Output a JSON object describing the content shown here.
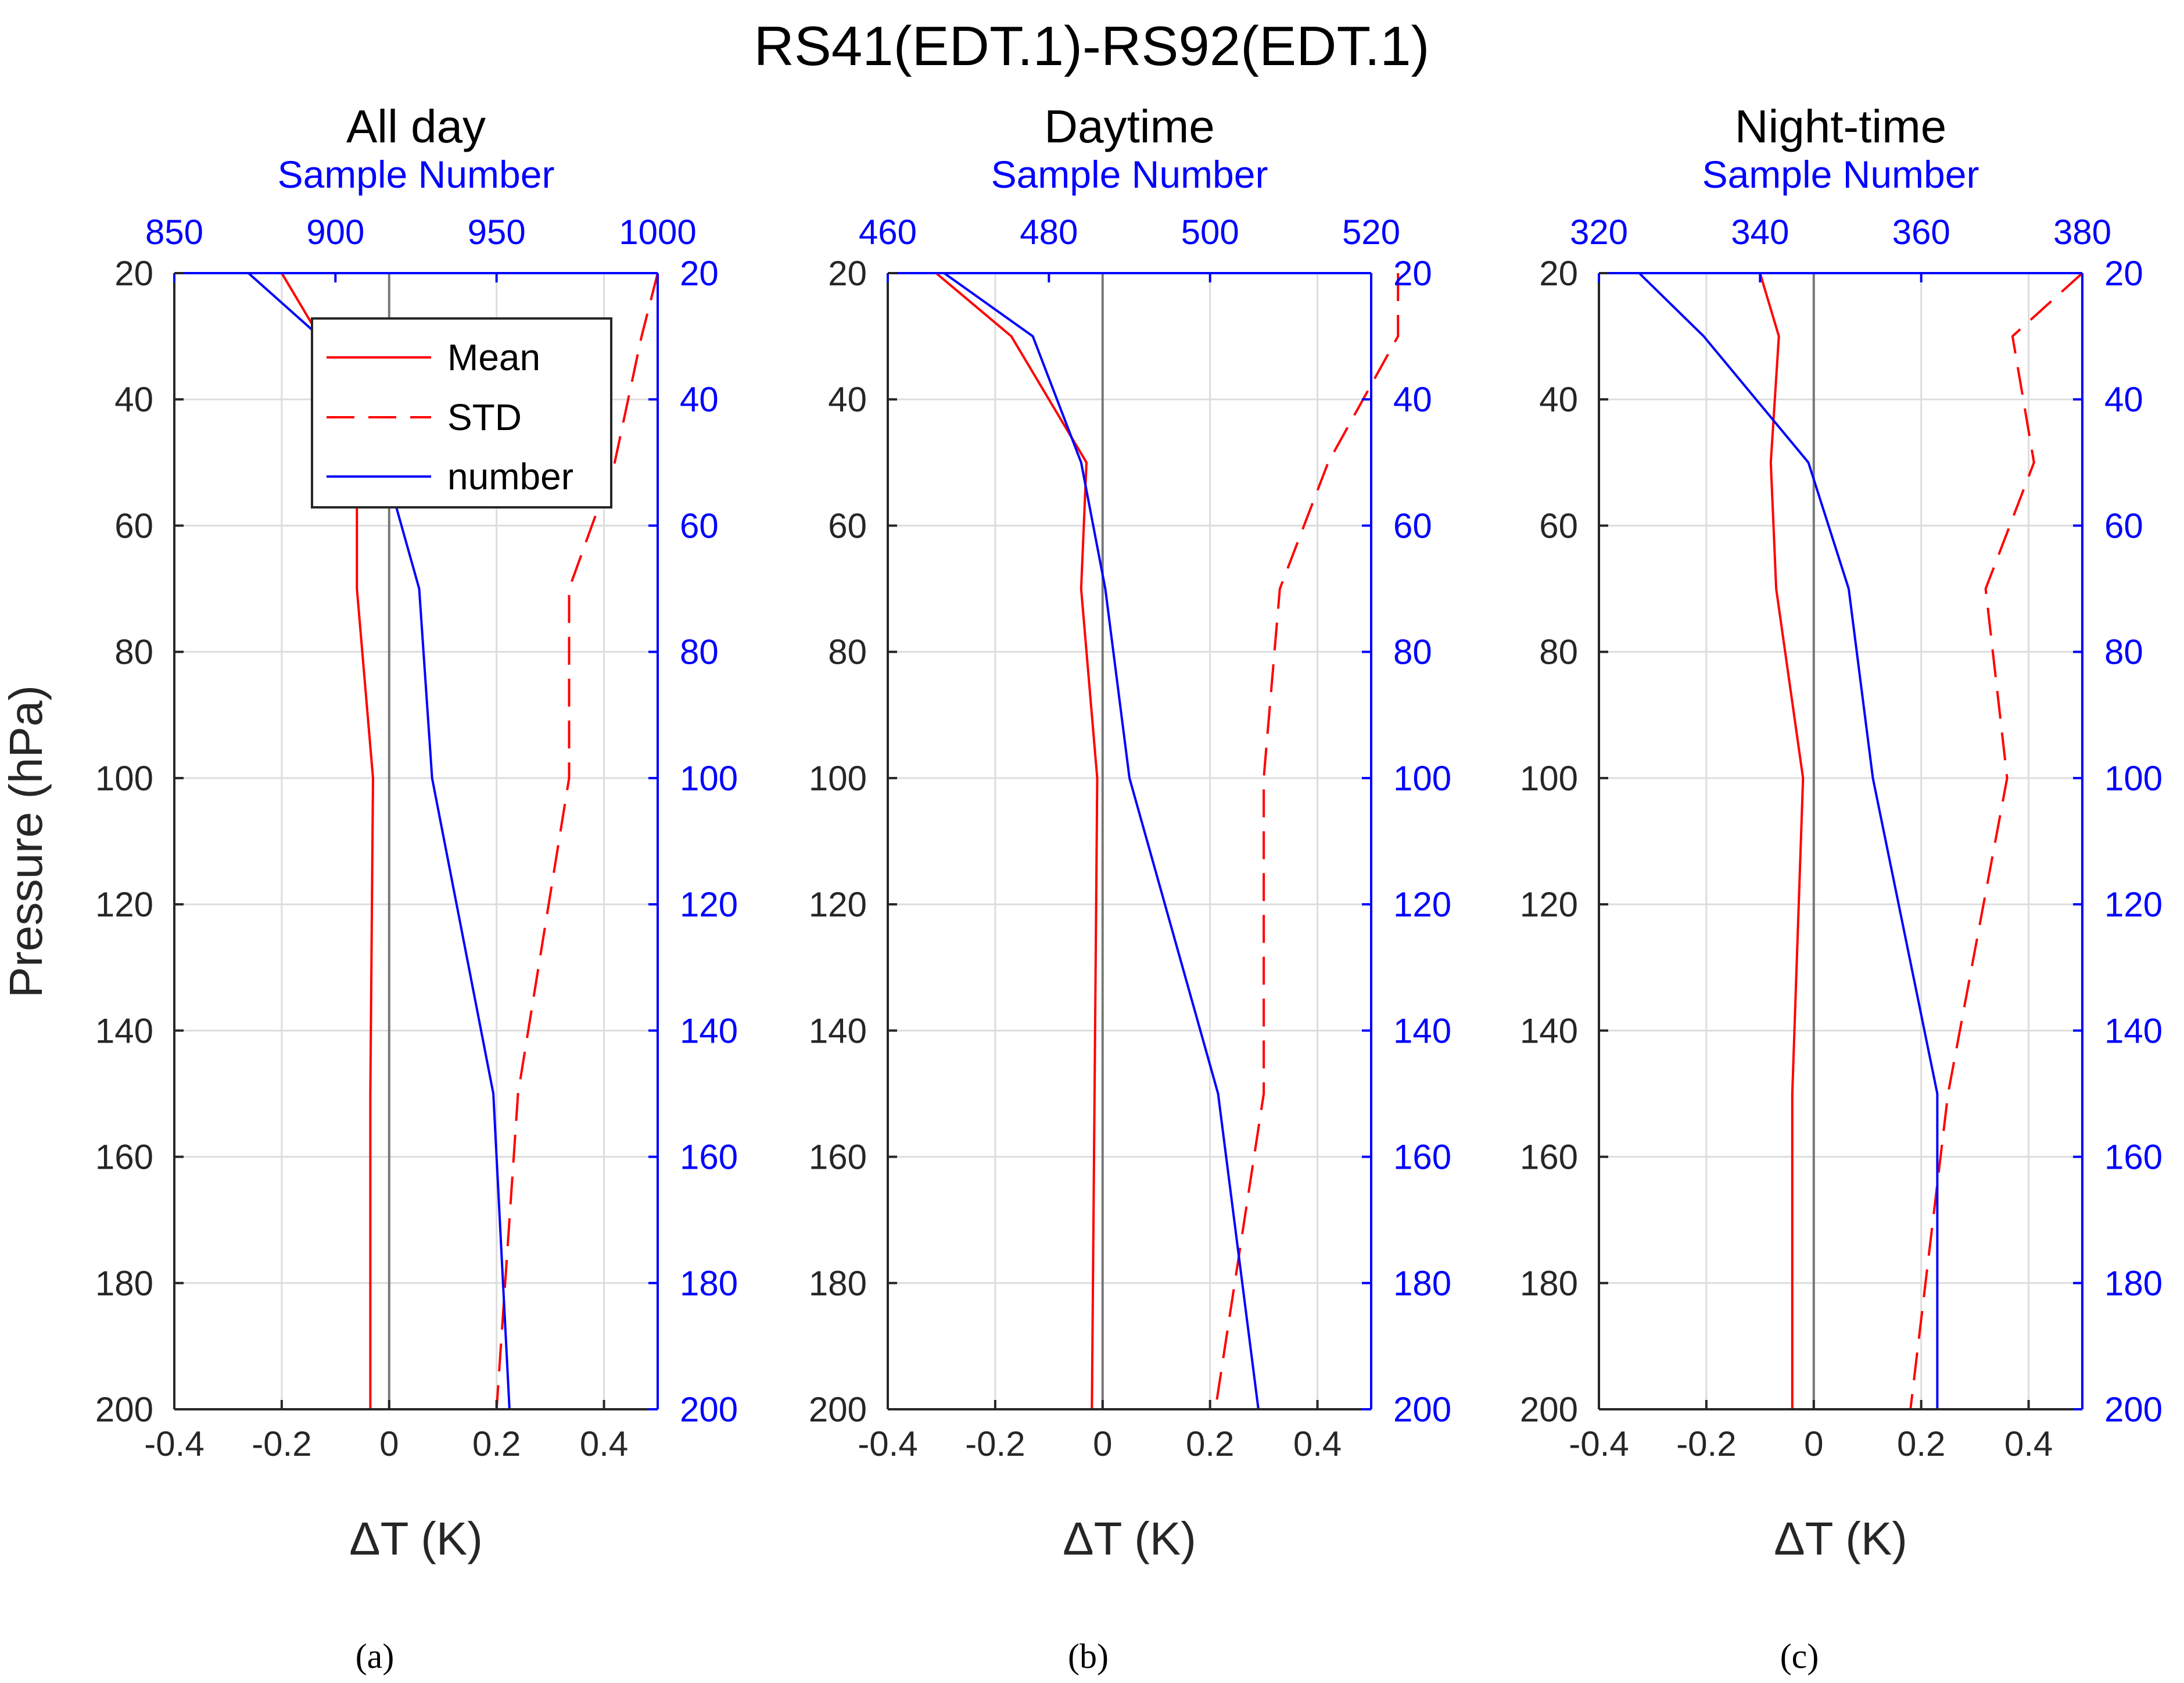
{
  "title": "RS41(EDT.1)-RS92(EDT.1)",
  "colors": {
    "mean": "#ff0000",
    "std": "#ff0000",
    "number": "#0000ff",
    "zero_line": "#777777",
    "grid": "#dddddd",
    "axis": "#262626",
    "blue_axis": "#0000ff"
  },
  "chart_data": [
    {
      "type": "line",
      "panel_title": "All day",
      "caption": "(a)",
      "xlabel": "ΔT (K)",
      "ylabel": "Pressure (hPa)",
      "top_xlabel": "Sample Number",
      "xlim": [
        -0.4,
        0.5
      ],
      "top_xlim": [
        850,
        1000
      ],
      "ylim": [
        20,
        200
      ],
      "x_ticks": [
        -0.4,
        -0.2,
        0,
        0.2,
        0.4
      ],
      "x_tick_labels": [
        "-0.4",
        "-0.2",
        "0",
        "0.2",
        "0.4"
      ],
      "top_ticks": [
        850,
        900,
        950,
        1000
      ],
      "top_tick_labels": [
        "850",
        "900",
        "950",
        "1000"
      ],
      "y_ticks": [
        20,
        40,
        60,
        80,
        100,
        120,
        140,
        160,
        180,
        200
      ],
      "y_tick_labels": [
        "20",
        "40",
        "60",
        "80",
        "100",
        "120",
        "140",
        "160",
        "180",
        "200"
      ],
      "right_tick_labels": [
        "20",
        "40",
        "60",
        "80",
        "100",
        "120",
        "140",
        "160",
        "180",
        "200"
      ],
      "legend": {
        "entries": [
          "Mean",
          "STD",
          "number"
        ],
        "position": "top-center"
      },
      "pressure": [
        20,
        30,
        50,
        70,
        100,
        150,
        200
      ],
      "series": [
        {
          "name": "Mean",
          "axis": "bottom",
          "style": "solid",
          "values": [
            -0.2,
            -0.13,
            -0.06,
            -0.06,
            -0.03,
            -0.035,
            -0.035
          ]
        },
        {
          "name": "STD",
          "axis": "bottom",
          "style": "dashed",
          "values": [
            0.5,
            0.47,
            0.42,
            0.335,
            0.335,
            0.24,
            0.2
          ]
        },
        {
          "name": "number",
          "axis": "top",
          "style": "solid",
          "values": [
            873,
            895,
            915,
            926,
            930,
            949,
            954
          ]
        }
      ]
    },
    {
      "type": "line",
      "panel_title": "Daytime",
      "caption": "(b)",
      "xlabel": "ΔT (K)",
      "top_xlabel": "Sample Number",
      "xlim": [
        -0.4,
        0.5
      ],
      "top_xlim": [
        460,
        520
      ],
      "ylim": [
        20,
        200
      ],
      "x_ticks": [
        -0.4,
        -0.2,
        0,
        0.2,
        0.4
      ],
      "x_tick_labels": [
        "-0.4",
        "-0.2",
        "0",
        "0.2",
        "0.4"
      ],
      "top_ticks": [
        460,
        480,
        500,
        520
      ],
      "top_tick_labels": [
        "460",
        "480",
        "500",
        "520"
      ],
      "y_ticks": [
        20,
        40,
        60,
        80,
        100,
        120,
        140,
        160,
        180,
        200
      ],
      "y_tick_labels": [
        "20",
        "40",
        "60",
        "80",
        "100",
        "120",
        "140",
        "160",
        "180",
        "200"
      ],
      "right_tick_labels": [
        "20",
        "40",
        "60",
        "80",
        "100",
        "120",
        "140",
        "160",
        "180",
        "200"
      ],
      "pressure": [
        20,
        30,
        50,
        70,
        100,
        150,
        200
      ],
      "series": [
        {
          "name": "Mean",
          "axis": "bottom",
          "style": "solid",
          "values": [
            -0.31,
            -0.17,
            -0.03,
            -0.04,
            -0.01,
            -0.015,
            -0.02
          ]
        },
        {
          "name": "STD",
          "axis": "bottom",
          "style": "dashed",
          "values": [
            0.55,
            0.55,
            0.42,
            0.33,
            0.3,
            0.3,
            0.21
          ]
        },
        {
          "name": "number",
          "axis": "top",
          "style": "solid",
          "values": [
            467,
            478,
            484,
            487,
            490,
            501,
            506
          ]
        }
      ]
    },
    {
      "type": "line",
      "panel_title": "Night-time",
      "caption": "(c)",
      "xlabel": "ΔT (K)",
      "top_xlabel": "Sample Number",
      "xlim": [
        -0.4,
        0.5
      ],
      "top_xlim": [
        320,
        380
      ],
      "ylim": [
        20,
        200
      ],
      "x_ticks": [
        -0.4,
        -0.2,
        0,
        0.2,
        0.4
      ],
      "x_tick_labels": [
        "-0.4",
        "-0.2",
        "0",
        "0.2",
        "0.4"
      ],
      "top_ticks": [
        320,
        340,
        360,
        380
      ],
      "top_tick_labels": [
        "320",
        "340",
        "360",
        "380"
      ],
      "y_ticks": [
        20,
        40,
        60,
        80,
        100,
        120,
        140,
        160,
        180,
        200
      ],
      "y_tick_labels": [
        "20",
        "40",
        "60",
        "80",
        "100",
        "120",
        "140",
        "160",
        "180",
        "200"
      ],
      "right_tick_labels": [
        "20",
        "40",
        "60",
        "80",
        "100",
        "120",
        "140",
        "160",
        "180",
        "200"
      ],
      "pressure": [
        20,
        30,
        50,
        70,
        100,
        150,
        200
      ],
      "series": [
        {
          "name": "Mean",
          "axis": "bottom",
          "style": "solid",
          "values": [
            -0.1,
            -0.065,
            -0.08,
            -0.07,
            -0.02,
            -0.04,
            -0.04
          ]
        },
        {
          "name": "STD",
          "axis": "bottom",
          "style": "dashed",
          "values": [
            0.5,
            0.37,
            0.41,
            0.32,
            0.36,
            0.25,
            0.18
          ]
        },
        {
          "name": "number",
          "axis": "top",
          "style": "solid",
          "values": [
            325,
            333,
            346,
            351,
            354,
            362,
            362
          ]
        }
      ]
    }
  ]
}
